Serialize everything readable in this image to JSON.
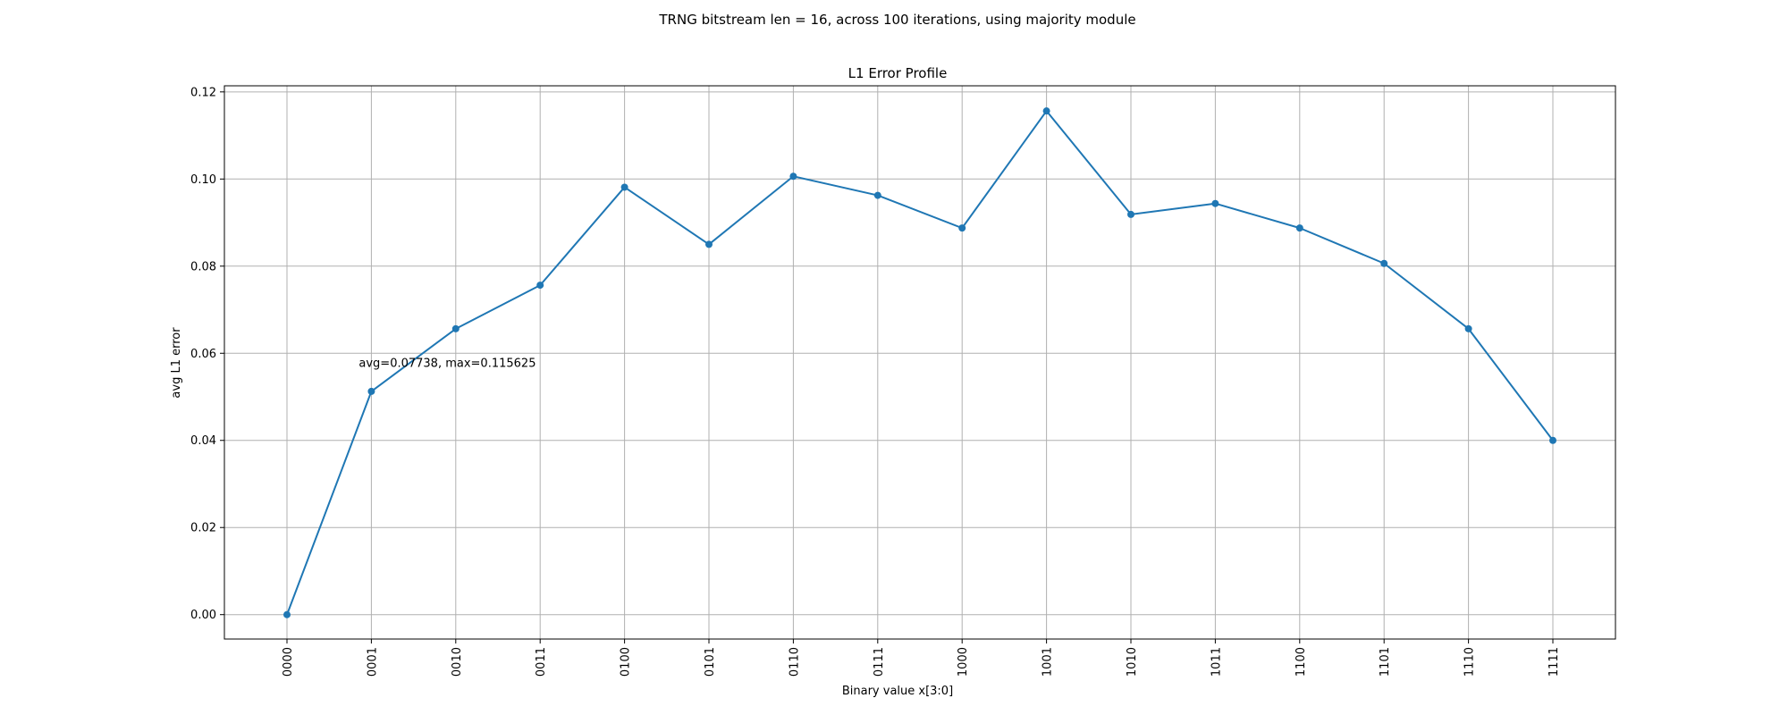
{
  "figure": {
    "suptitle": "TRNG bitstream len = 16, across 100 iterations, using majority module"
  },
  "chart_data": {
    "type": "line",
    "title": "L1 Error Profile",
    "xlabel": "Binary value x[3:0]",
    "ylabel": "avg L1 error",
    "categories": [
      "0000",
      "0001",
      "0010",
      "0011",
      "0100",
      "0101",
      "0110",
      "0111",
      "1000",
      "1001",
      "1010",
      "1011",
      "1100",
      "1101",
      "1110",
      "1111"
    ],
    "series": [
      {
        "values": [
          0.0,
          0.05125,
          0.065625,
          0.075625,
          0.098125,
          0.085,
          0.100625,
          0.09625,
          0.08875,
          0.115625,
          0.091875,
          0.094375,
          0.08875,
          0.080625,
          0.065625,
          0.04
        ],
        "color": "#1f77b4",
        "marker": "circle"
      }
    ],
    "ylim": [
      -0.0056,
      0.1214
    ],
    "yticks": [
      0.0,
      0.02,
      0.04,
      0.06,
      0.08,
      0.1,
      0.12
    ],
    "ytick_labels": [
      "0.00",
      "0.02",
      "0.04",
      "0.06",
      "0.08",
      "0.10",
      "0.12"
    ],
    "grid": true,
    "annotation": {
      "text": "avg=0.07738, max=0.115625",
      "x_index": 1,
      "y": 0.0575
    }
  }
}
